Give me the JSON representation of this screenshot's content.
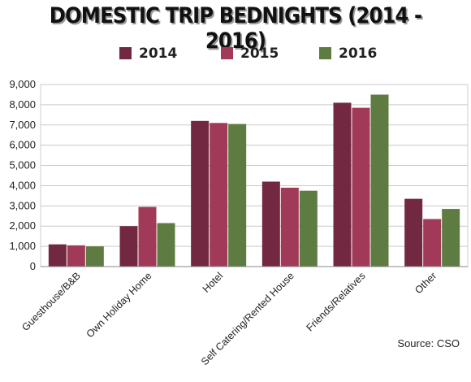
{
  "chart_data": {
    "type": "bar",
    "title": "DOMESTIC TRIP BEDNIGHTS (2014 - 2016)",
    "categories": [
      "Guesthouse/B&B",
      "Own Holiday Home",
      "Hotel",
      "Self Catering/Rented House",
      "Friends/Relatives",
      "Other"
    ],
    "series": [
      {
        "name": "2014",
        "color": "#722840",
        "values": [
          1100,
          2000,
          7200,
          4200,
          8100,
          3350
        ]
      },
      {
        "name": "2015",
        "color": "#a13a58",
        "values": [
          1050,
          2950,
          7100,
          3900,
          7850,
          2350
        ]
      },
      {
        "name": "2016",
        "color": "#5e7c41",
        "values": [
          1000,
          2150,
          7050,
          3750,
          8500,
          2850
        ]
      }
    ],
    "ylim": [
      0,
      9000
    ],
    "yticks": [
      "0",
      "1,000",
      "2,000",
      "3,000",
      "4,000",
      "5,000",
      "6,000",
      "7,000",
      "8,000",
      "9,000"
    ],
    "xlabel": "",
    "ylabel": "",
    "grid": true,
    "legend_position": "top",
    "source": "Source: CSO"
  }
}
